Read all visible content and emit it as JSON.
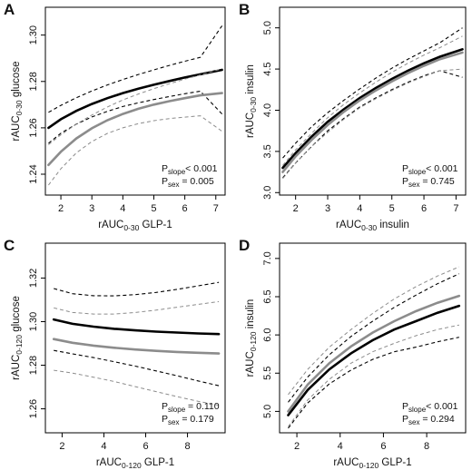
{
  "chart_data": [
    {
      "type": "line",
      "panel": "A",
      "xlabel": {
        "main": "rAUC",
        "sub": "0-30",
        "rest": " GLP-1"
      },
      "ylabel": {
        "main": "rAUC",
        "sub": "0-30",
        "rest": " glucose"
      },
      "xlim": [
        1.5,
        7.3
      ],
      "ylim": [
        1.231,
        1.312
      ],
      "xticks": [
        2,
        3,
        4,
        5,
        6,
        7
      ],
      "yticks": [
        1.24,
        1.26,
        1.28,
        1.3
      ],
      "ytick_labels": [
        "1.24",
        "1.26",
        "1.28",
        "1.30"
      ],
      "series": [
        {
          "color": "#000000",
          "style": "solid",
          "x": [
            1.6,
            2.0,
            2.5,
            3.0,
            3.5,
            4.0,
            4.5,
            5.0,
            5.5,
            6.0,
            6.5,
            7.2
          ],
          "y": [
            1.26,
            1.2637,
            1.2673,
            1.2703,
            1.2728,
            1.275,
            1.2769,
            1.2786,
            1.2802,
            1.2817,
            1.2831,
            1.285
          ],
          "upper": [
            1.2667,
            1.2697,
            1.273,
            1.2759,
            1.2785,
            1.2808,
            1.283,
            1.285,
            1.2869,
            1.2887,
            1.2904,
            1.304
          ],
          "lower": [
            1.2533,
            1.2577,
            1.2616,
            1.2647,
            1.2671,
            1.2692,
            1.2708,
            1.2722,
            1.2735,
            1.2747,
            1.2758,
            1.266
          ]
        },
        {
          "color": "#8c8c8c",
          "style": "solid",
          "x": [
            1.6,
            2.0,
            2.5,
            3.0,
            3.5,
            4.0,
            4.5,
            5.0,
            5.5,
            6.0,
            6.5,
            7.2
          ],
          "y": [
            1.244,
            1.2497,
            1.2554,
            1.2598,
            1.2633,
            1.266,
            1.2682,
            1.27,
            1.2715,
            1.2728,
            1.274,
            1.275
          ],
          "upper": [
            1.2527,
            1.257,
            1.2616,
            1.2655,
            1.269,
            1.272,
            1.2746,
            1.2769,
            1.279,
            1.281,
            1.2828,
            1.2855
          ],
          "lower": [
            1.2353,
            1.2424,
            1.2492,
            1.2541,
            1.2576,
            1.26,
            1.2618,
            1.2631,
            1.264,
            1.2646,
            1.2652,
            1.2585
          ]
        }
      ],
      "stats": [
        {
          "label": "P",
          "sub": "slope",
          "value": "< 0.001"
        },
        {
          "label": "P",
          "sub": "sex",
          "value": " = 0.005"
        }
      ]
    },
    {
      "type": "line",
      "panel": "B",
      "xlabel": {
        "main": "rAUC",
        "sub": "0-30",
        "rest": " insulin"
      },
      "ylabel": {
        "main": "rAUC",
        "sub": "0-30",
        "rest": " insulin"
      },
      "xlim": [
        1.5,
        7.3
      ],
      "ylim": [
        2.97,
        5.25
      ],
      "xticks": [
        2,
        3,
        4,
        5,
        6,
        7
      ],
      "yticks": [
        3.0,
        3.5,
        4.0,
        4.5,
        5.0
      ],
      "ytick_labels": [
        "3.0",
        "3.5",
        "4.0",
        "4.5",
        "5.0"
      ],
      "series": [
        {
          "color": "#000000",
          "style": "solid",
          "x": [
            1.6,
            2.0,
            2.5,
            3.0,
            3.5,
            4.0,
            4.5,
            5.0,
            5.5,
            6.0,
            6.5,
            7.2
          ],
          "y": [
            3.3,
            3.48,
            3.68,
            3.86,
            4.01,
            4.15,
            4.27,
            4.38,
            4.48,
            4.57,
            4.65,
            4.74
          ],
          "upper": [
            3.42,
            3.6,
            3.8,
            3.97,
            4.12,
            4.26,
            4.39,
            4.51,
            4.62,
            4.72,
            4.82,
            5.0
          ],
          "lower": [
            3.18,
            3.36,
            3.56,
            3.75,
            3.9,
            4.04,
            4.15,
            4.25,
            4.34,
            4.42,
            4.48,
            4.4
          ]
        },
        {
          "color": "#8c8c8c",
          "style": "solid",
          "x": [
            1.6,
            2.0,
            2.5,
            3.0,
            3.5,
            4.0,
            4.5,
            5.0,
            5.5,
            6.0,
            6.5,
            7.2
          ],
          "y": [
            3.25,
            3.44,
            3.64,
            3.82,
            3.98,
            4.12,
            4.24,
            4.35,
            4.45,
            4.54,
            4.62,
            4.7
          ],
          "upper": [
            3.33,
            3.52,
            3.72,
            3.91,
            4.07,
            4.21,
            4.34,
            4.46,
            4.57,
            4.67,
            4.76,
            4.9
          ],
          "lower": [
            3.17,
            3.36,
            3.56,
            3.73,
            3.89,
            4.03,
            4.14,
            4.24,
            4.33,
            4.41,
            4.48,
            4.5
          ]
        }
      ],
      "stats": [
        {
          "label": "P",
          "sub": "slope",
          "value": "< 0.001"
        },
        {
          "label": "P",
          "sub": "sex",
          "value": " = 0.745"
        }
      ]
    },
    {
      "type": "line",
      "panel": "C",
      "xlabel": {
        "main": "rAUC",
        "sub": "0-120",
        "rest": " GLP-1"
      },
      "ylabel": {
        "main": "rAUC",
        "sub": "0-120",
        "rest": " glucose"
      },
      "xlim": [
        1.2,
        9.8
      ],
      "ylim": [
        1.249,
        1.336
      ],
      "xticks": [
        2,
        4,
        6,
        8
      ],
      "yticks": [
        1.26,
        1.28,
        1.3,
        1.32
      ],
      "ytick_labels": [
        "1.26",
        "1.28",
        "1.30",
        "1.32"
      ],
      "series": [
        {
          "color": "#000000",
          "style": "solid",
          "x": [
            1.6,
            2.5,
            3.5,
            4.5,
            5.5,
            6.5,
            7.5,
            8.5,
            9.5
          ],
          "y": [
            1.301,
            1.299,
            1.2977,
            1.2967,
            1.296,
            1.2954,
            1.295,
            1.2946,
            1.2943
          ],
          "upper": [
            1.3152,
            1.3128,
            1.3119,
            1.3118,
            1.3124,
            1.3134,
            1.3148,
            1.3164,
            1.318
          ],
          "lower": [
            1.2868,
            1.2852,
            1.2835,
            1.2816,
            1.2796,
            1.2774,
            1.2752,
            1.2728,
            1.2706
          ]
        },
        {
          "color": "#8c8c8c",
          "style": "solid",
          "x": [
            1.6,
            2.5,
            3.5,
            4.5,
            5.5,
            6.5,
            7.5,
            8.5,
            9.5
          ],
          "y": [
            1.292,
            1.2903,
            1.289,
            1.288,
            1.2872,
            1.2866,
            1.2861,
            1.2857,
            1.2854
          ],
          "upper": [
            1.3063,
            1.3042,
            1.3035,
            1.3035,
            1.3042,
            1.3053,
            1.3066,
            1.3079,
            1.3092
          ],
          "lower": [
            1.2777,
            1.2764,
            1.2745,
            1.2725,
            1.2702,
            1.2679,
            1.2656,
            1.2635,
            1.2616
          ]
        }
      ],
      "stats": [
        {
          "label": "P",
          "sub": "slope",
          "value": " = 0.110"
        },
        {
          "label": "P",
          "sub": "sex",
          "value": " = 0.179"
        }
      ]
    },
    {
      "type": "line",
      "panel": "D",
      "xlabel": {
        "main": "rAUC",
        "sub": "0-120",
        "rest": " GLP-1"
      },
      "ylabel": {
        "main": "rAUC",
        "sub": "0-120",
        "rest": " insulin"
      },
      "xlim": [
        1.2,
        9.8
      ],
      "ylim": [
        4.72,
        7.2
      ],
      "xticks": [
        2,
        4,
        6,
        8
      ],
      "yticks": [
        5.0,
        5.5,
        6.0,
        6.5,
        7.0
      ],
      "ytick_labels": [
        "5.0",
        "5.5",
        "6.0",
        "6.5",
        "7.0"
      ],
      "series": [
        {
          "color": "#000000",
          "style": "solid",
          "x": [
            1.6,
            2.5,
            3.5,
            4.5,
            5.5,
            6.5,
            7.5,
            8.5,
            9.5
          ],
          "y": [
            4.95,
            5.28,
            5.55,
            5.76,
            5.93,
            6.07,
            6.18,
            6.29,
            6.38
          ],
          "upper": [
            5.12,
            5.45,
            5.74,
            5.98,
            6.18,
            6.36,
            6.52,
            6.67,
            6.8
          ],
          "lower": [
            4.78,
            5.11,
            5.36,
            5.54,
            5.68,
            5.78,
            5.84,
            5.91,
            5.97
          ]
        },
        {
          "color": "#8c8c8c",
          "style": "solid",
          "x": [
            1.6,
            2.5,
            3.5,
            4.5,
            5.5,
            6.5,
            7.5,
            8.5,
            9.5
          ],
          "y": [
            5.0,
            5.35,
            5.63,
            5.85,
            6.03,
            6.18,
            6.31,
            6.42,
            6.51
          ],
          "upper": [
            5.22,
            5.55,
            5.84,
            6.07,
            6.28,
            6.47,
            6.63,
            6.77,
            6.89
          ],
          "lower": [
            4.8,
            5.15,
            5.42,
            5.63,
            5.78,
            5.89,
            5.99,
            6.07,
            6.13
          ]
        }
      ],
      "stats": [
        {
          "label": "P",
          "sub": "slope",
          "value": "< 0.001"
        },
        {
          "label": "P",
          "sub": "sex",
          "value": " = 0.294"
        }
      ]
    }
  ]
}
